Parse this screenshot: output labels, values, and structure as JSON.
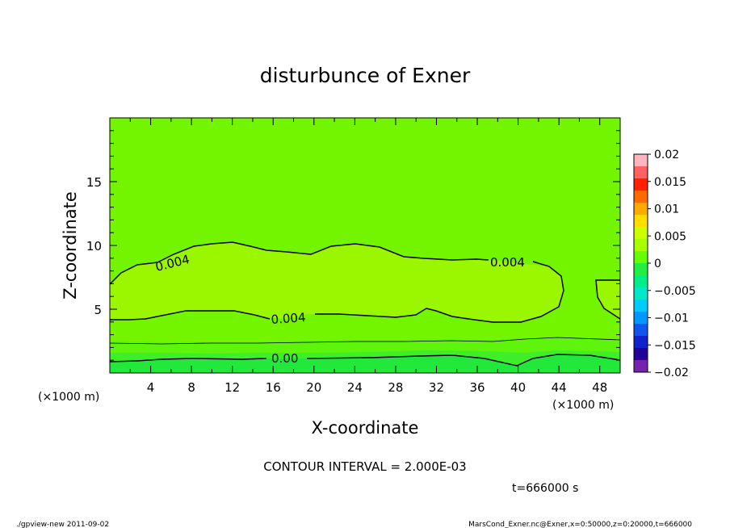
{
  "chart_data": {
    "type": "contour",
    "title": "disturbunce of Exner",
    "xlabel": "X-coordinate",
    "ylabel": "Z-coordinate",
    "x_unit_left": "(×1000 m)",
    "x_unit_right": "(×1000 m)",
    "xlim": [
      0,
      50
    ],
    "ylim": [
      0,
      20
    ],
    "x_ticks": [
      "4",
      "8",
      "12",
      "16",
      "20",
      "24",
      "28",
      "32",
      "36",
      "40",
      "44",
      "48"
    ],
    "y_ticks": [
      "5",
      "10",
      "15"
    ],
    "contour_labels": [
      "0.004",
      "0.004",
      "0.004",
      "0.00"
    ],
    "contour_interval_text": "CONTOUR INTERVAL = 2.000E-03",
    "time_text": "t=666000 s",
    "colorbar": {
      "labels": [
        "0.02",
        "0.015",
        "0.01",
        "0.005",
        "0",
        "−0.005",
        "−0.01",
        "−0.015",
        "−0.02"
      ],
      "colors": [
        "#ffb6c1",
        "#ff6060",
        "#ff2200",
        "#ff6a00",
        "#ffaa00",
        "#ffdd00",
        "#ccff00",
        "#a8ff00",
        "#66ff00",
        "#22ee44",
        "#00ee88",
        "#00e8c8",
        "#00ccff",
        "#0099ff",
        "#1155ee",
        "#1122cc",
        "#220099",
        "#7722aa"
      ]
    },
    "footer_left": "./gpview-new   2011-09-02",
    "footer_right": "MarsCond_Exner.nc@Exner,x=0:50000,z=0:20000,t=666000"
  },
  "colors": {
    "background_field": "#73f500",
    "positive_region": "#9bf700",
    "low_band_1": "#5ef40c",
    "low_band_2": "#3dee28",
    "low_band_3": "#22e83c"
  }
}
